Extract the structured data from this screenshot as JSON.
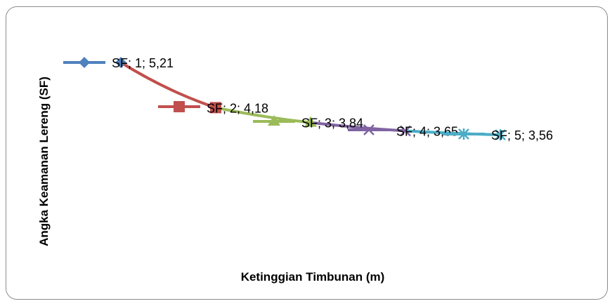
{
  "chart_data": {
    "type": "line",
    "title": "",
    "xlabel": "Ketinggian Timbunan (m)",
    "ylabel": "Angka Keamanan Lereng (SF)",
    "x": [
      1,
      2,
      3,
      4,
      5
    ],
    "ylim": [
      0,
      6
    ],
    "grid": false,
    "series": [
      {
        "name": "SF",
        "values": [
          5.21,
          4.18,
          3.84,
          3.65,
          3.56
        ]
      }
    ],
    "data_labels": [
      "SF; 1; 5,21",
      "SF; 2; 4,18",
      "SF; 3; 3,84",
      "SF; 4; 3,65",
      "SF; 5; 3,56"
    ],
    "segment_colors": [
      "#c0504d",
      "#9bbb59",
      "#8064a2",
      "#4bacc6"
    ],
    "marker_colors": [
      "#4f81bd",
      "#c0504d",
      "#9bbb59",
      "#8064a2",
      "#4bacc6"
    ],
    "marker_shapes": [
      "diamond",
      "square",
      "triangle",
      "x",
      "star"
    ]
  }
}
